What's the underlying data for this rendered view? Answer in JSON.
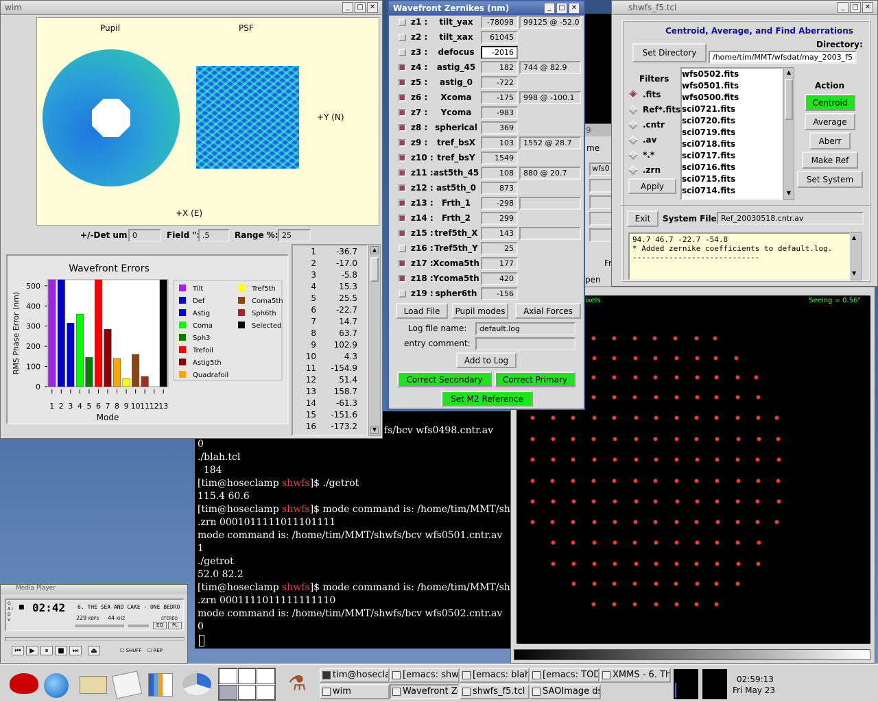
{
  "wim": {
    "title": "wim",
    "pupil_label": "Pupil",
    "psf_label": "PSF",
    "y_axis_label": "+Y (N)",
    "x_axis_label": "+X (E)",
    "det_label": "+/-Det um:",
    "det_value": "0",
    "field_label": "Field \":",
    "field_value": ".5",
    "range_label": "Range %:",
    "range_value": "25",
    "mode_values": [
      [
        "1",
        "-36.7"
      ],
      [
        "2",
        "-17.0"
      ],
      [
        "3",
        "-5.8"
      ],
      [
        "4",
        "15.3"
      ],
      [
        "5",
        "25.5"
      ],
      [
        "6",
        "-22.7"
      ],
      [
        "7",
        "14.7"
      ],
      [
        "8",
        "63.7"
      ],
      [
        "9",
        "102.9"
      ],
      [
        "10",
        "4.3"
      ],
      [
        "11",
        "-154.9"
      ],
      [
        "12",
        "51.4"
      ],
      [
        "13",
        "158.7"
      ],
      [
        "14",
        "-61.3"
      ],
      [
        "15",
        "-151.6"
      ],
      [
        "16",
        "-173.2"
      ]
    ]
  },
  "chart_data": {
    "type": "bar",
    "title": "Wavefront Errors",
    "xlabel": "Mode",
    "ylabel": "RMS Phase Error (nm)",
    "ylim": [
      0,
      530
    ],
    "yticks": [
      "500",
      "400",
      "300",
      "200",
      "100",
      "0"
    ],
    "categories": [
      "1",
      "2",
      "3",
      "4",
      "5",
      "6",
      "7",
      "8",
      "9",
      "10",
      "11",
      "12",
      "13"
    ],
    "values": [
      530,
      530,
      315,
      360,
      145,
      530,
      285,
      140,
      40,
      160,
      50,
      0,
      530
    ],
    "bar_colors": [
      "#a020f0",
      "#0000cc",
      "#0000cc",
      "#00ff00",
      "#008000",
      "#ff0000",
      "#8b0000",
      "#ffa500",
      "#ffff00",
      "#8b4513",
      "#a52a2a",
      "#000000",
      "#000000"
    ],
    "legend": [
      {
        "name": "Tilt",
        "color": "#a020f0"
      },
      {
        "name": "Def",
        "color": "#0000cc"
      },
      {
        "name": "Astig",
        "color": "#0000cc"
      },
      {
        "name": "Coma",
        "color": "#00ff00"
      },
      {
        "name": "Sph3",
        "color": "#008000"
      },
      {
        "name": "Trefoil",
        "color": "#ff0000"
      },
      {
        "name": "Astig5th",
        "color": "#8b0000"
      },
      {
        "name": "Quadrafoil",
        "color": "#ffa500"
      },
      {
        "name": "Tref5th",
        "color": "#ffff00"
      },
      {
        "name": "Coma5th",
        "color": "#8b4513"
      },
      {
        "name": "Sph6th",
        "color": "#a52a2a"
      },
      {
        "name": "Selected",
        "color": "#000000"
      }
    ],
    "legend_placement": "right"
  },
  "zernikes": {
    "title": "Wavefront Zernikes (nm)",
    "rows": [
      {
        "id": "z1 :",
        "name": "tilt_yax",
        "value": "-78098",
        "mag": "99125 @ -52.0",
        "checked": false
      },
      {
        "id": "z2 :",
        "name": "tilt_xax",
        "value": "61045",
        "mag": null,
        "checked": false
      },
      {
        "id": "z3 :",
        "name": "defocus",
        "value": "-2016",
        "mag": null,
        "checked": false
      },
      {
        "id": "z4 :",
        "name": "astig_45",
        "value": "182",
        "mag": "744 @ 82.9",
        "checked": true
      },
      {
        "id": "z5 :",
        "name": "astig_0",
        "value": "-722",
        "mag": null,
        "checked": true
      },
      {
        "id": "z6 :",
        "name": "Xcoma",
        "value": "-175",
        "mag": "998 @ -100.1",
        "checked": true
      },
      {
        "id": "z7 :",
        "name": "Ycoma",
        "value": "-983",
        "mag": null,
        "checked": true
      },
      {
        "id": "z8 :",
        "name": "spherical",
        "value": "369",
        "mag": null,
        "checked": true
      },
      {
        "id": "z9 :",
        "name": "tref_bsX",
        "value": "103",
        "mag": "1552 @ 28.7",
        "checked": true
      },
      {
        "id": "z10 :",
        "name": "tref_bsY",
        "value": "1549",
        "mag": null,
        "checked": true
      },
      {
        "id": "z11 :",
        "name": "ast5th_45",
        "value": "108",
        "mag": "880 @ 20.7",
        "checked": true
      },
      {
        "id": "z12 :",
        "name": "ast5th_0",
        "value": "873",
        "mag": null,
        "checked": true
      },
      {
        "id": "z13 :",
        "name": "Frth_1",
        "value": "-298",
        "mag": "",
        "checked": true
      },
      {
        "id": "z14 :",
        "name": "Frth_2",
        "value": "299",
        "mag": null,
        "checked": true
      },
      {
        "id": "z15 :",
        "name": "tref5th_X",
        "value": "143",
        "mag": "",
        "checked": true
      },
      {
        "id": "z16 :",
        "name": "Tref5th_Y",
        "value": "25",
        "mag": null,
        "checked": false
      },
      {
        "id": "z17 :",
        "name": "Xcoma5th",
        "value": "177",
        "mag": null,
        "checked": true
      },
      {
        "id": "z18 :",
        "name": "Ycoma5th",
        "value": "420",
        "mag": null,
        "checked": true
      },
      {
        "id": "z19 :",
        "name": "spher6th",
        "value": "-156",
        "mag": null,
        "checked": false
      }
    ],
    "load_file": "Load File",
    "pupil_modes": "Pupil modes",
    "axial_forces": "Axial Forces",
    "log_file_label": "Log file name:",
    "log_file_value": "default.log",
    "entry_comment_label": "entry comment:",
    "entry_comment_value": "",
    "add_to_log": "Add to Log",
    "correct_secondary": "Correct Secondary",
    "correct_primary": "Correct Primary",
    "set_m2_reference": "Set M2 Reference"
  },
  "shwfs": {
    "title": "shwfs_f5.tcl",
    "heading": "Centroid, Average, and Find Aberrations",
    "set_directory": "Set Directory",
    "directory_label": "Directory:",
    "directory_value": "/home/tim/MMT/wfsdat/may_2003_f5",
    "filters_label": "Filters",
    "filters": [
      {
        "label": ".fits",
        "selected": true
      },
      {
        "label": "Ref*.fits",
        "selected": false
      },
      {
        "label": ".cntr",
        "selected": false
      },
      {
        "label": ".av",
        "selected": false
      },
      {
        "label": "*.*",
        "selected": false
      },
      {
        "label": ".zrn",
        "selected": false
      }
    ],
    "apply": "Apply",
    "files": [
      "wfs0502.fits",
      "wfs0501.fits",
      "wfs0500.fits",
      "sci0721.fits",
      "sci0720.fits",
      "sci0719.fits",
      "sci0718.fits",
      "sci0717.fits",
      "sci0716.fits",
      "sci0715.fits",
      "sci0714.fits"
    ],
    "action_label": "Action",
    "centroid": "Centroid",
    "average": "Average",
    "aberr": "Aberr",
    "make_ref": "Make Ref",
    "set_system": "Set System",
    "exit": "Exit",
    "system_file_label": "System File:",
    "system_file_value": "Ref_20030518.cntr.av",
    "log_lines": [
      "94.7  46.7 -22.7 -54.8",
      "* Added zernike coefficients to default.log.",
      "----------------------------"
    ]
  },
  "saoimage": {
    "pixels_label": "ixels",
    "seeing": "Seeing = 0.56\""
  },
  "terminal": {
    "lines": [
      {
        "text": "fs/bcv wfs0498.cntr.av",
        "x": 560
      },
      {
        "text": "0"
      },
      {
        "text": "./blah.tcl"
      },
      {
        "text": "  184"
      },
      {
        "user": "tim@hoseclamp",
        "dir": "shwfs",
        "rest": "$ ./getrot"
      },
      {
        "text": "115.4 60.6"
      },
      {
        "user": "tim@hoseclamp",
        "dir": "shwfs",
        "rest": "$ mode command is: /home/tim/MMT/shw"
      },
      {
        "text": ".zrn 0001011111011101111"
      },
      {
        "text": "mode command is: /home/tim/MMT/shwfs/bcv wfs0501.cntr.av"
      },
      {
        "text": "1"
      },
      {
        "text": "./getrot"
      },
      {
        "text": "52.0 82.2"
      },
      {
        "user": "tim@hoseclamp",
        "dir": "shwfs",
        "rest": "$ mode command is: /home/tim/MMT/shw"
      },
      {
        "text": ".zrn 0001111011111111110"
      },
      {
        "text": "mode command is: /home/tim/MMT/shwfs/bcv wfs0502.cntr.av"
      },
      {
        "text": "0"
      }
    ]
  },
  "behind": {
    "me": "me",
    "wfs": "wfs0",
    "fr": "Fr",
    "pen": "pen",
    "nine": "9"
  },
  "media_player": {
    "title": "Media Player",
    "time": "02:42",
    "track": "6. THE SEA AND CAKE - ONE BEDRO",
    "kbps": "229",
    "kbps_unit": "KBPS",
    "khz": "44",
    "khz_unit": "KHZ",
    "stereo": "STEREO",
    "side_letters": "O A I D V",
    "eq": "EQ",
    "pl": "PL",
    "shuff": "SHUFF",
    "rep": "REP"
  },
  "taskbar": {
    "tasks_top": [
      "tim@hoseclar",
      "[emacs: shwf",
      "[emacs: blah.",
      "[emacs: TOD",
      "XMMS - 6. Th"
    ],
    "tasks_bottom": [
      "wim",
      "Wavefront Ze",
      "shwfs_f5.tcl",
      "SAOImage ds"
    ],
    "time": "02:59:13",
    "date": "Fri May 23"
  }
}
